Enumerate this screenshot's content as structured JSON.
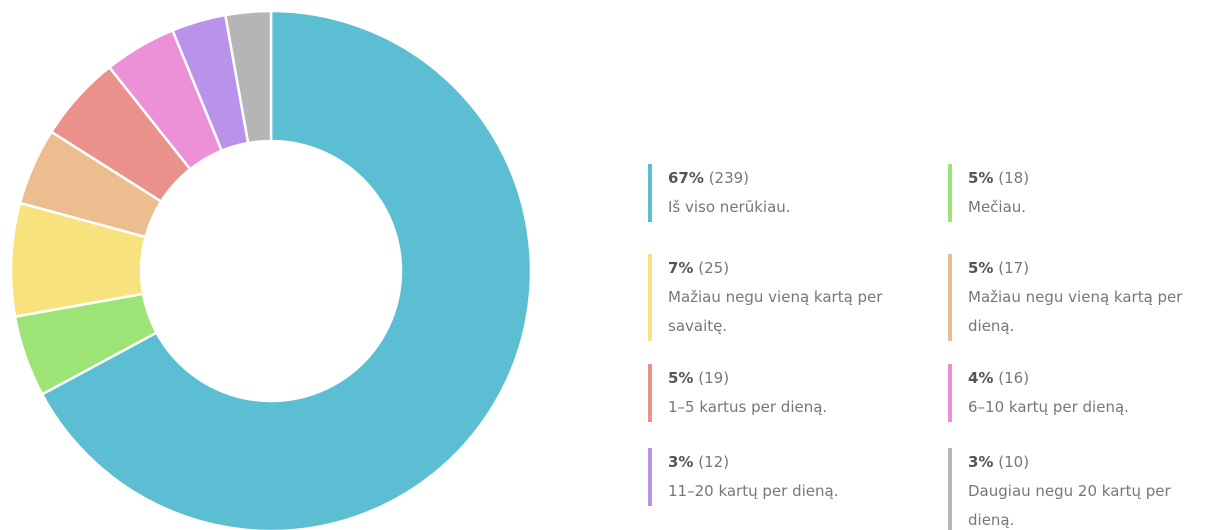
{
  "chart_data": {
    "type": "donut",
    "categories": [
      "Iš viso nerūkiau.",
      "Mečiau.",
      "Mažiau negu vieną kartą per savaitę.",
      "Mažiau negu vieną kartą per dieną.",
      "1–5 kartus per dieną.",
      "6–10 kartų per dieną.",
      "11–20 kartų per dieną.",
      "Daugiau negu 20 kartų per dieną."
    ],
    "values": [
      239,
      18,
      25,
      17,
      19,
      16,
      12,
      10
    ],
    "value_labels": [
      "(239)",
      "(18)",
      "(25)",
      "(17)",
      "(19)",
      "(16)",
      "(12)",
      "(10)"
    ],
    "percents": [
      67,
      5,
      7,
      5,
      5,
      4,
      3,
      3
    ],
    "percent_labels": [
      "67%",
      "5%",
      "7%",
      "5%",
      "5%",
      "4%",
      "3%",
      "3%"
    ],
    "colors": [
      "#5bbed3",
      "#9de477",
      "#f8e27d",
      "#ecbd8f",
      "#ea918c",
      "#ec91d8",
      "#b993ea",
      "#b5b5b5"
    ]
  }
}
